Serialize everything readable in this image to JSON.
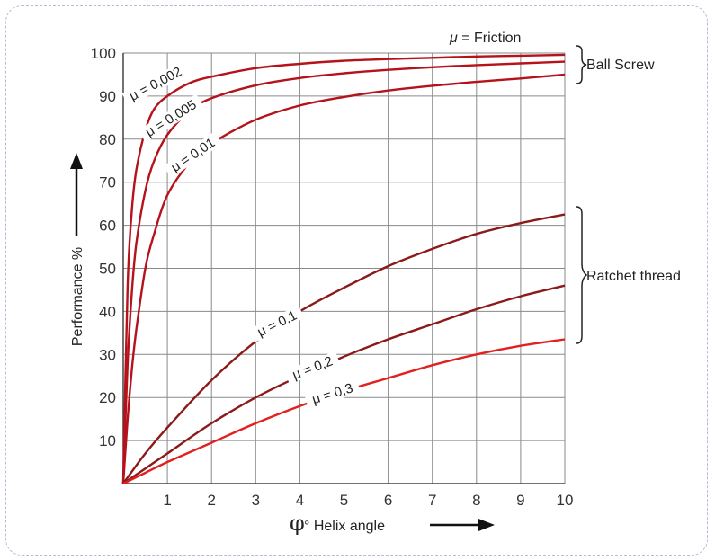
{
  "chart_data": {
    "type": "line",
    "xlabel_symbol": "φ",
    "xlabel": "° Helix angle",
    "ylabel": "Performance %",
    "xlim": [
      0,
      10
    ],
    "ylim": [
      0,
      100
    ],
    "x_ticks": [
      1,
      2,
      3,
      4,
      5,
      6,
      7,
      8,
      9,
      10
    ],
    "y_ticks": [
      10,
      20,
      30,
      40,
      50,
      60,
      70,
      80,
      90,
      100
    ],
    "grid": true,
    "legend_note": "μ = Friction",
    "groups": [
      {
        "label": "Ball Screw"
      },
      {
        "label": "Ratchet thread"
      }
    ],
    "series": [
      {
        "name": "μ = 0,002",
        "color": "#b5121b",
        "x": [
          0,
          0.1,
          0.2,
          0.3,
          0.5,
          0.7,
          1,
          1.5,
          2,
          3,
          4,
          5,
          6,
          7,
          8,
          9,
          10
        ],
        "y": [
          0,
          46,
          64,
          73,
          82,
          87,
          90,
          93,
          94.5,
          96.5,
          97.5,
          98.2,
          98.6,
          98.9,
          99.2,
          99.4,
          99.6
        ]
      },
      {
        "name": "μ = 0,005",
        "color": "#b5121b",
        "x": [
          0,
          0.1,
          0.2,
          0.3,
          0.5,
          0.7,
          1,
          1.5,
          2,
          3,
          4,
          5,
          6,
          7,
          8,
          9,
          10
        ],
        "y": [
          0,
          28,
          45,
          56,
          68,
          75,
          81,
          86.5,
          89.5,
          92.5,
          94.2,
          95.3,
          96.1,
          96.7,
          97.2,
          97.6,
          98
        ]
      },
      {
        "name": "μ = 0,01",
        "color": "#b5121b",
        "x": [
          0,
          0.1,
          0.2,
          0.3,
          0.5,
          0.7,
          1,
          1.5,
          2,
          3,
          4,
          5,
          6,
          7,
          8,
          9,
          10
        ],
        "y": [
          0,
          15,
          27,
          36,
          50,
          58,
          67,
          74.5,
          79,
          84.5,
          87.8,
          89.8,
          91.3,
          92.4,
          93.3,
          94.1,
          95
        ]
      },
      {
        "name": "μ = 0,1",
        "color": "#8b1a1a",
        "x": [
          0,
          0.5,
          1,
          2,
          3,
          4,
          5,
          6,
          7,
          8,
          9,
          10
        ],
        "y": [
          0,
          7,
          13,
          24,
          33,
          40,
          45.5,
          50.5,
          54.5,
          58,
          60.5,
          62.5
        ]
      },
      {
        "name": "μ = 0,2",
        "color": "#8b1a1a",
        "x": [
          0,
          0.5,
          1,
          2,
          3,
          4,
          5,
          6,
          7,
          8,
          9,
          10
        ],
        "y": [
          0,
          3.5,
          7,
          14,
          20,
          25,
          29.5,
          33.5,
          37,
          40.5,
          43.5,
          46
        ]
      },
      {
        "name": "μ = 0,3",
        "color": "#e2201f",
        "x": [
          0,
          0.5,
          1,
          2,
          3,
          4,
          5,
          6,
          7,
          8,
          9,
          10
        ],
        "y": [
          0,
          2.5,
          5,
          9.5,
          14,
          18,
          21.5,
          24.5,
          27.5,
          30,
          32,
          33.5
        ]
      }
    ]
  }
}
